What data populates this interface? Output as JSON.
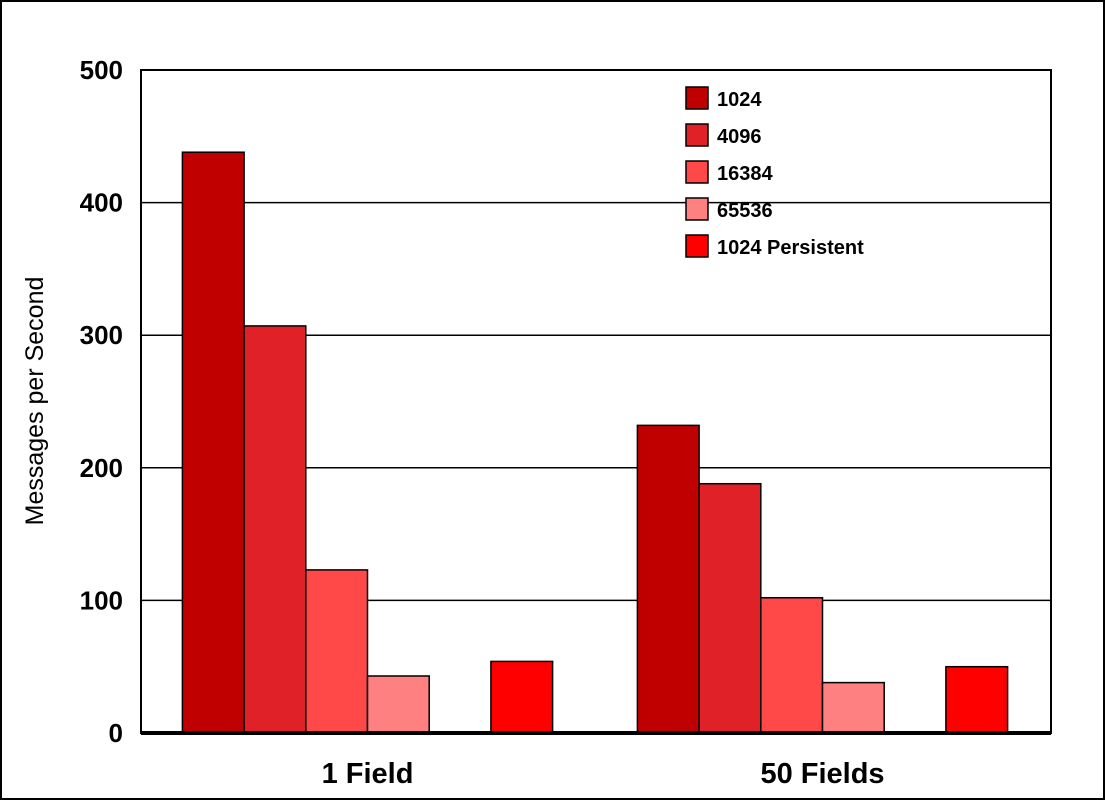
{
  "chart_data": {
    "type": "bar",
    "title": "",
    "xlabel": "",
    "ylabel": "Messages per Second",
    "categories": [
      "1 Field",
      "50 Fields"
    ],
    "ylim": [
      0,
      500
    ],
    "yticks": [
      0,
      100,
      200,
      300,
      400,
      500
    ],
    "grid": true,
    "legend_position": "top-right",
    "series": [
      {
        "name": "1024",
        "values": [
          438,
          232
        ],
        "color": "#C00000"
      },
      {
        "name": "4096",
        "values": [
          307,
          188
        ],
        "color": "#E02228"
      },
      {
        "name": "16384",
        "values": [
          123,
          102
        ],
        "color": "#FF4848"
      },
      {
        "name": "65536",
        "values": [
          43,
          38
        ],
        "color": "#FF8080"
      },
      {
        "name": "",
        "values": [
          0,
          0
        ],
        "color": "#FFB0B0"
      },
      {
        "name": "1024 Persistent",
        "values": [
          54,
          50
        ],
        "color": "#FF0000"
      }
    ]
  }
}
